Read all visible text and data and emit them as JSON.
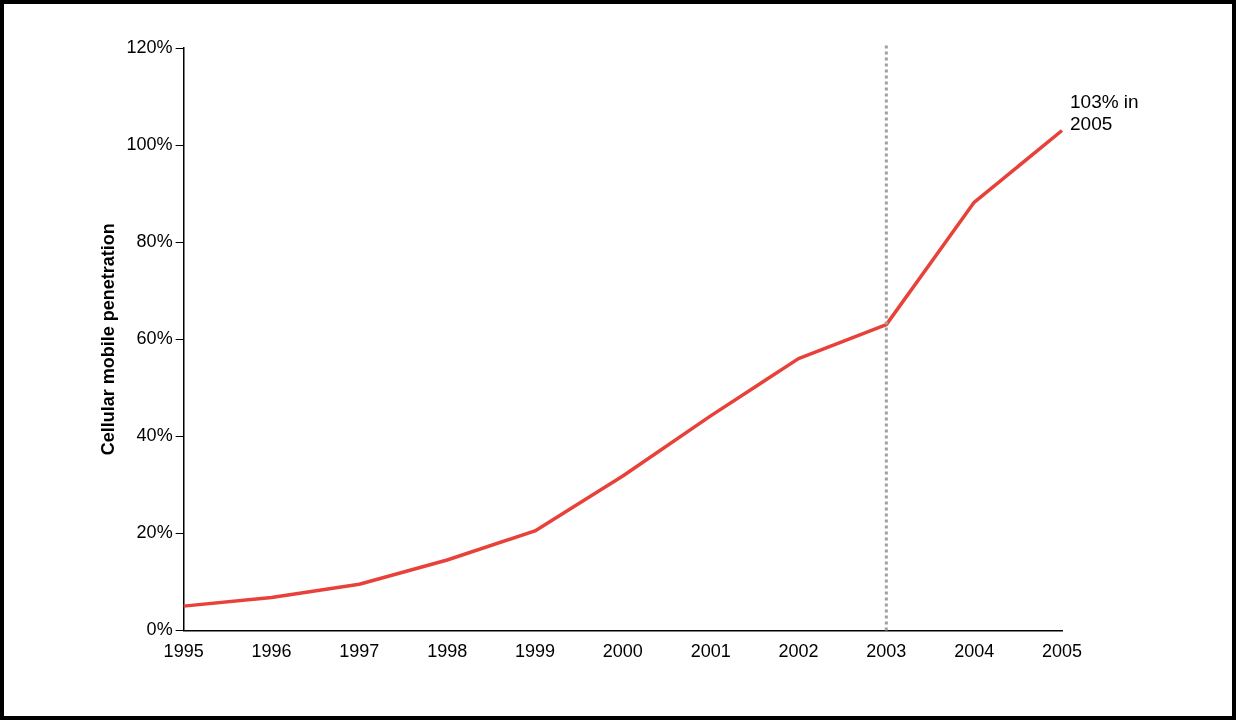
{
  "chart_data": {
    "type": "line",
    "ylabel": "Cellular mobile penetration",
    "categories": [
      "1995",
      "1996",
      "1997",
      "1998",
      "1999",
      "2000",
      "2001",
      "2002",
      "2003",
      "2004",
      "2005"
    ],
    "series": [
      {
        "color": "#e8413a",
        "values": [
          5,
          6.8,
          9.5,
          14.5,
          20.5,
          31.8,
          44.2,
          56,
          63,
          88.2,
          103
        ]
      }
    ],
    "ylim": [
      0,
      120
    ],
    "yticks": [
      {
        "value": 0,
        "label": "0%"
      },
      {
        "value": 20,
        "label": "20%"
      },
      {
        "value": 40,
        "label": "40%"
      },
      {
        "value": 60,
        "label": "60%"
      },
      {
        "value": 80,
        "label": "80%"
      },
      {
        "value": 100,
        "label": "100%"
      },
      {
        "value": 120,
        "label": "120%"
      }
    ],
    "grid": false,
    "legend": false,
    "marker": "none",
    "line_style": "solid",
    "ref_lines": [
      {
        "axis": "x",
        "value": "2003",
        "color": "#a0a0a0",
        "line_style": "dotted"
      }
    ],
    "annotations": [
      {
        "text": "103% in\n2005",
        "x": "2005",
        "y": 103
      }
    ]
  }
}
